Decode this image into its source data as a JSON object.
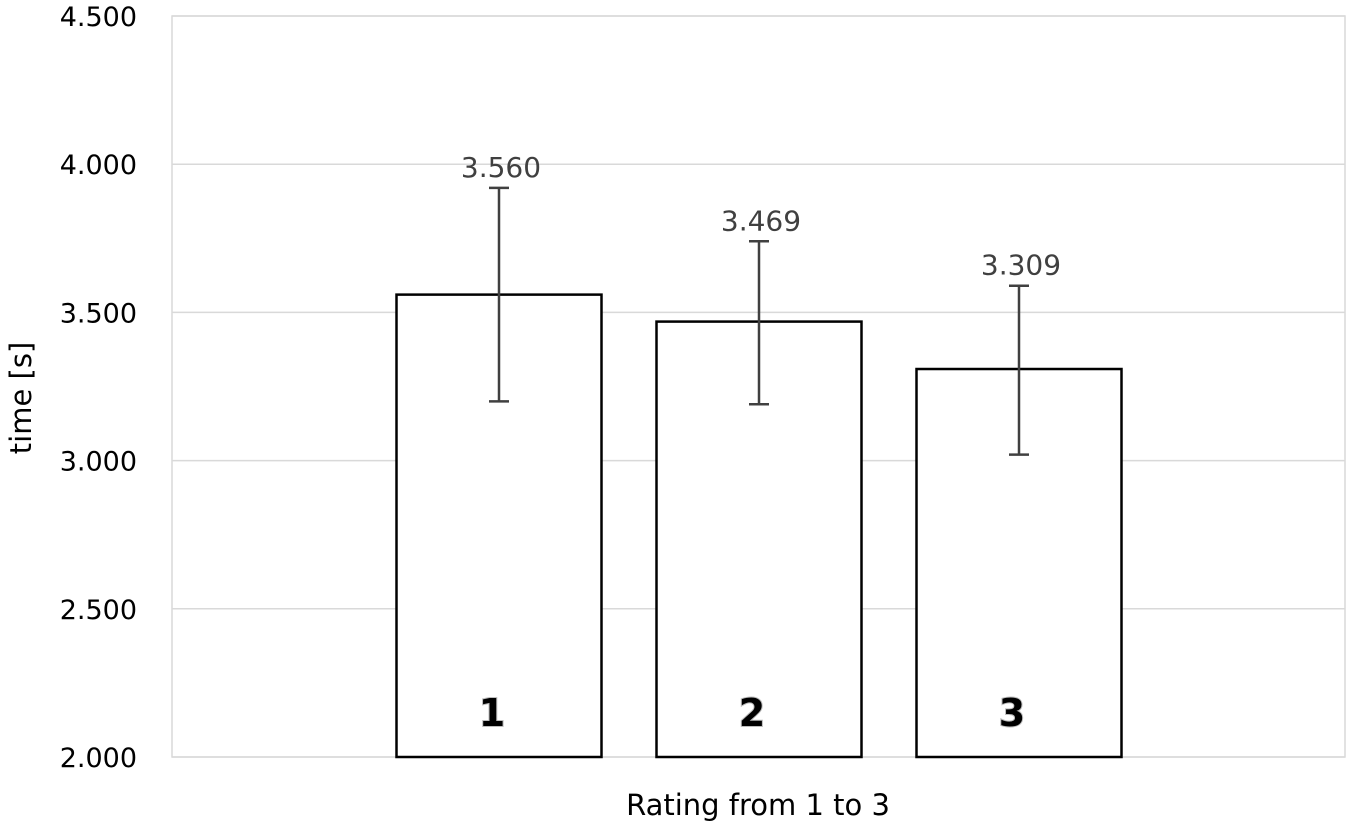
{
  "chart_data": {
    "type": "bar",
    "categories": [
      "1",
      "2",
      "3"
    ],
    "values": [
      3.56,
      3.469,
      3.309
    ],
    "data_labels": [
      "3.560",
      "3.469",
      "3.309"
    ],
    "error_bars": [
      {
        "low": 3.2,
        "high": 3.92
      },
      {
        "low": 3.19,
        "high": 3.74
      },
      {
        "low": 3.02,
        "high": 3.59
      }
    ],
    "xlabel": "Rating from 1 to 3",
    "ylabel": "time [s]",
    "ylim": [
      2.0,
      4.5
    ],
    "yticks": [
      2.0,
      2.5,
      3.0,
      3.5,
      4.0,
      4.5
    ],
    "ytick_labels": [
      "2.000",
      "2.500",
      "3.000",
      "3.500",
      "4.000",
      "4.500"
    ],
    "grid": true,
    "legend": "none",
    "colors": {
      "bar_fill": "#ffffff",
      "bar_stroke": "#000000",
      "grid": "#d9d9d9",
      "error_bar": "#404040",
      "text": "#000000",
      "data_label": "#404040"
    }
  }
}
